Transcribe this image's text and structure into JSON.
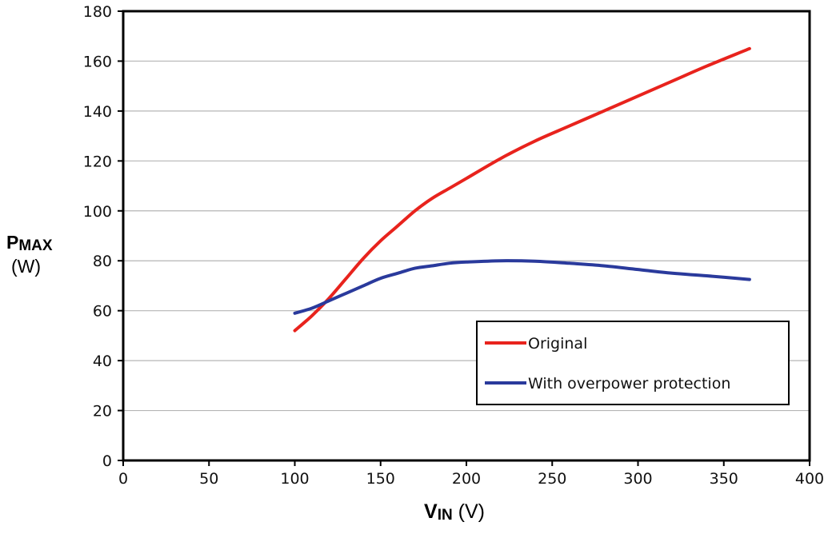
{
  "chart_data": {
    "type": "line",
    "title": "",
    "ylabel": {
      "main": "P",
      "sub": "MAX",
      "unit": "(W)"
    },
    "xlabel": {
      "main": "V",
      "sub": "IN",
      "unit": "(V)"
    },
    "xlim": [
      0,
      400
    ],
    "ylim": [
      0,
      180
    ],
    "xticks": [
      0,
      50,
      100,
      150,
      200,
      250,
      300,
      350,
      400
    ],
    "yticks": [
      0,
      20,
      40,
      60,
      80,
      100,
      120,
      140,
      160,
      180
    ],
    "grid": "horizontal",
    "legend_position": "lower-right",
    "series": [
      {
        "name": "Original",
        "color": "#e8231d",
        "x": [
          100,
          110,
          120,
          130,
          140,
          150,
          160,
          170,
          180,
          190,
          200,
          220,
          240,
          260,
          280,
          300,
          320,
          340,
          365
        ],
        "y": [
          52,
          58,
          65,
          73,
          81,
          88,
          94,
          100,
          105,
          109,
          113,
          121,
          128,
          134,
          140,
          146,
          152,
          158,
          165
        ]
      },
      {
        "name": "With overpower protection",
        "color": "#2a3a9c",
        "x": [
          100,
          110,
          120,
          130,
          140,
          150,
          160,
          170,
          180,
          190,
          200,
          220,
          240,
          260,
          280,
          300,
          320,
          340,
          365
        ],
        "y": [
          59,
          61,
          64,
          67,
          70,
          73,
          75,
          77,
          78,
          79,
          79.5,
          80,
          79.8,
          79,
          78,
          76.5,
          75,
          74,
          72.5
        ]
      }
    ]
  }
}
